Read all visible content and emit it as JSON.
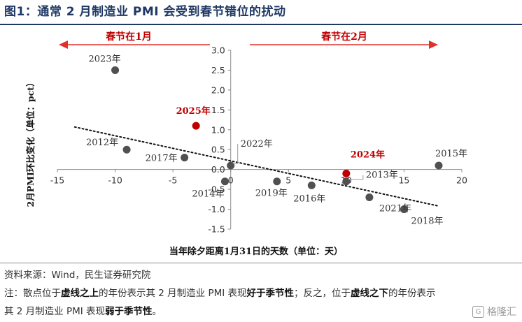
{
  "figure_title": "图1：通常 2 月制造业 PMI 会受到春节错位的扰动",
  "arrow_left_label": "春节在1月",
  "arrow_right_label": "春节在2月",
  "source": "资料来源：Wind，民生证券研究院",
  "note": {
    "p1": "注：散点位于",
    "b1": "虚线之上",
    "p2": "的年份表示其 2 月制造业 PMI 表现",
    "b2": "好于季节性",
    "p3": "；反之，位于",
    "b3": "虚线之下",
    "p4": "的年份表示",
    "p5": "其 2 月制造业 PMI 表现",
    "b4": "弱于季节性",
    "p6": "。"
  },
  "watermark": "格隆汇",
  "chart_data": {
    "type": "scatter",
    "xlabel": "当年除夕距离1月31日的天数（单位：天）",
    "ylabel": "2月PMI环比变化（单位：pct）",
    "xlim": [
      -15,
      20
    ],
    "ylim": [
      -1.5,
      3.0
    ],
    "xticks": [
      -15,
      -10,
      -5,
      0,
      5,
      10,
      15,
      20
    ],
    "yticks": [
      3.0,
      2.5,
      2.0,
      1.5,
      1.0,
      0.5,
      0.0,
      -0.5,
      -1.0,
      -1.5
    ],
    "grid": false,
    "trendline": {
      "style": "dotted",
      "x": [
        -13.5,
        18
      ],
      "y": [
        1.07,
        -0.92
      ]
    },
    "points": [
      {
        "x": -10,
        "y": 2.5,
        "label": "2023年",
        "highlight": false
      },
      {
        "x": -9,
        "y": 0.5,
        "label": "2012年",
        "highlight": false
      },
      {
        "x": -4,
        "y": 0.3,
        "label": "2017年",
        "highlight": false
      },
      {
        "x": -3,
        "y": 1.1,
        "label": "2025年",
        "highlight": true
      },
      {
        "x": -0.5,
        "y": -0.3,
        "label": "2014年",
        "highlight": false
      },
      {
        "x": 0,
        "y": 0.1,
        "label": "2022年",
        "highlight": false
      },
      {
        "x": 4,
        "y": -0.3,
        "label": "2019年",
        "highlight": false
      },
      {
        "x": 7,
        "y": -0.4,
        "label": "2016年",
        "highlight": false
      },
      {
        "x": 10,
        "y": -0.1,
        "label": "2024年",
        "highlight": true
      },
      {
        "x": 10,
        "y": -0.3,
        "label": "2013年",
        "highlight": false
      },
      {
        "x": 12,
        "y": -0.7,
        "label": "2021年",
        "highlight": false
      },
      {
        "x": 15,
        "y": -1.0,
        "label": "2018年",
        "highlight": false
      },
      {
        "x": 18,
        "y": 0.1,
        "label": "2015年",
        "highlight": false
      }
    ],
    "colors": {
      "normal": "#505050",
      "highlight": "#c00000",
      "arrow": "#e0312b",
      "highlight_label": "#c00000"
    }
  }
}
